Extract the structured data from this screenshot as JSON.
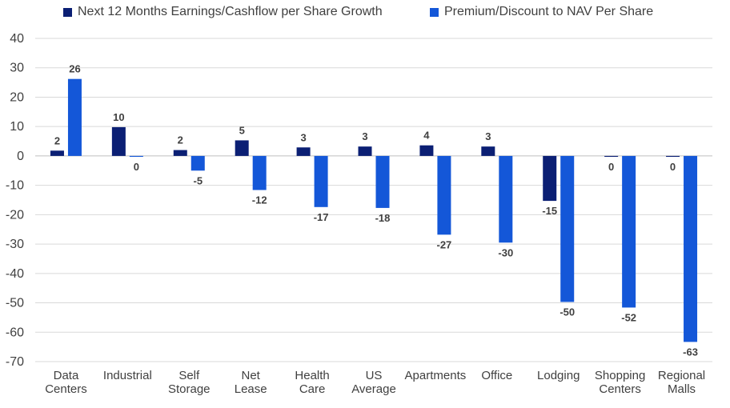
{
  "chart_data": {
    "type": "bar",
    "categories": [
      [
        "Data",
        "Centers"
      ],
      [
        "Industrial"
      ],
      [
        "Self",
        "Storage"
      ],
      [
        "Net",
        "Lease"
      ],
      [
        "Health",
        "Care"
      ],
      [
        "US",
        "Average"
      ],
      [
        "Apartments"
      ],
      [
        "Office"
      ],
      [
        "Lodging"
      ],
      [
        "Shopping",
        "Centers"
      ],
      [
        "Regional",
        "Malls"
      ]
    ],
    "series": [
      {
        "name": "Next 12 Months Earnings/Cashflow per Share Growth",
        "color": "#0b1f74",
        "values": [
          1.8,
          9.8,
          2.0,
          5.3,
          2.9,
          3.2,
          3.6,
          3.2,
          -15.3,
          -0.3,
          -0.3
        ],
        "labels": [
          "2",
          "10",
          "2",
          "5",
          "3",
          "3",
          "4",
          "3",
          "-15",
          "0",
          "0"
        ]
      },
      {
        "name": "Premium/Discount to NAV Per Share",
        "color": "#1457d8",
        "values": [
          26.2,
          -0.3,
          -5.0,
          -11.6,
          -17.4,
          -17.7,
          -26.8,
          -29.5,
          -49.7,
          -51.6,
          -63.3
        ],
        "labels": [
          "26",
          "0",
          "-5",
          "-12",
          "-17",
          "-18",
          "-27",
          "-30",
          "-50",
          "-52",
          "-63"
        ]
      }
    ],
    "ylim": [
      -70,
      40
    ],
    "yticks": [
      "40",
      "30",
      "20",
      "10",
      "0",
      "-10",
      "-20",
      "-30",
      "-40",
      "-50",
      "-60",
      "-70"
    ],
    "ytick_values": [
      40,
      30,
      20,
      10,
      0,
      -10,
      -20,
      -30,
      -40,
      -50,
      -60,
      -70
    ],
    "grid": true,
    "legend_position": "top"
  }
}
